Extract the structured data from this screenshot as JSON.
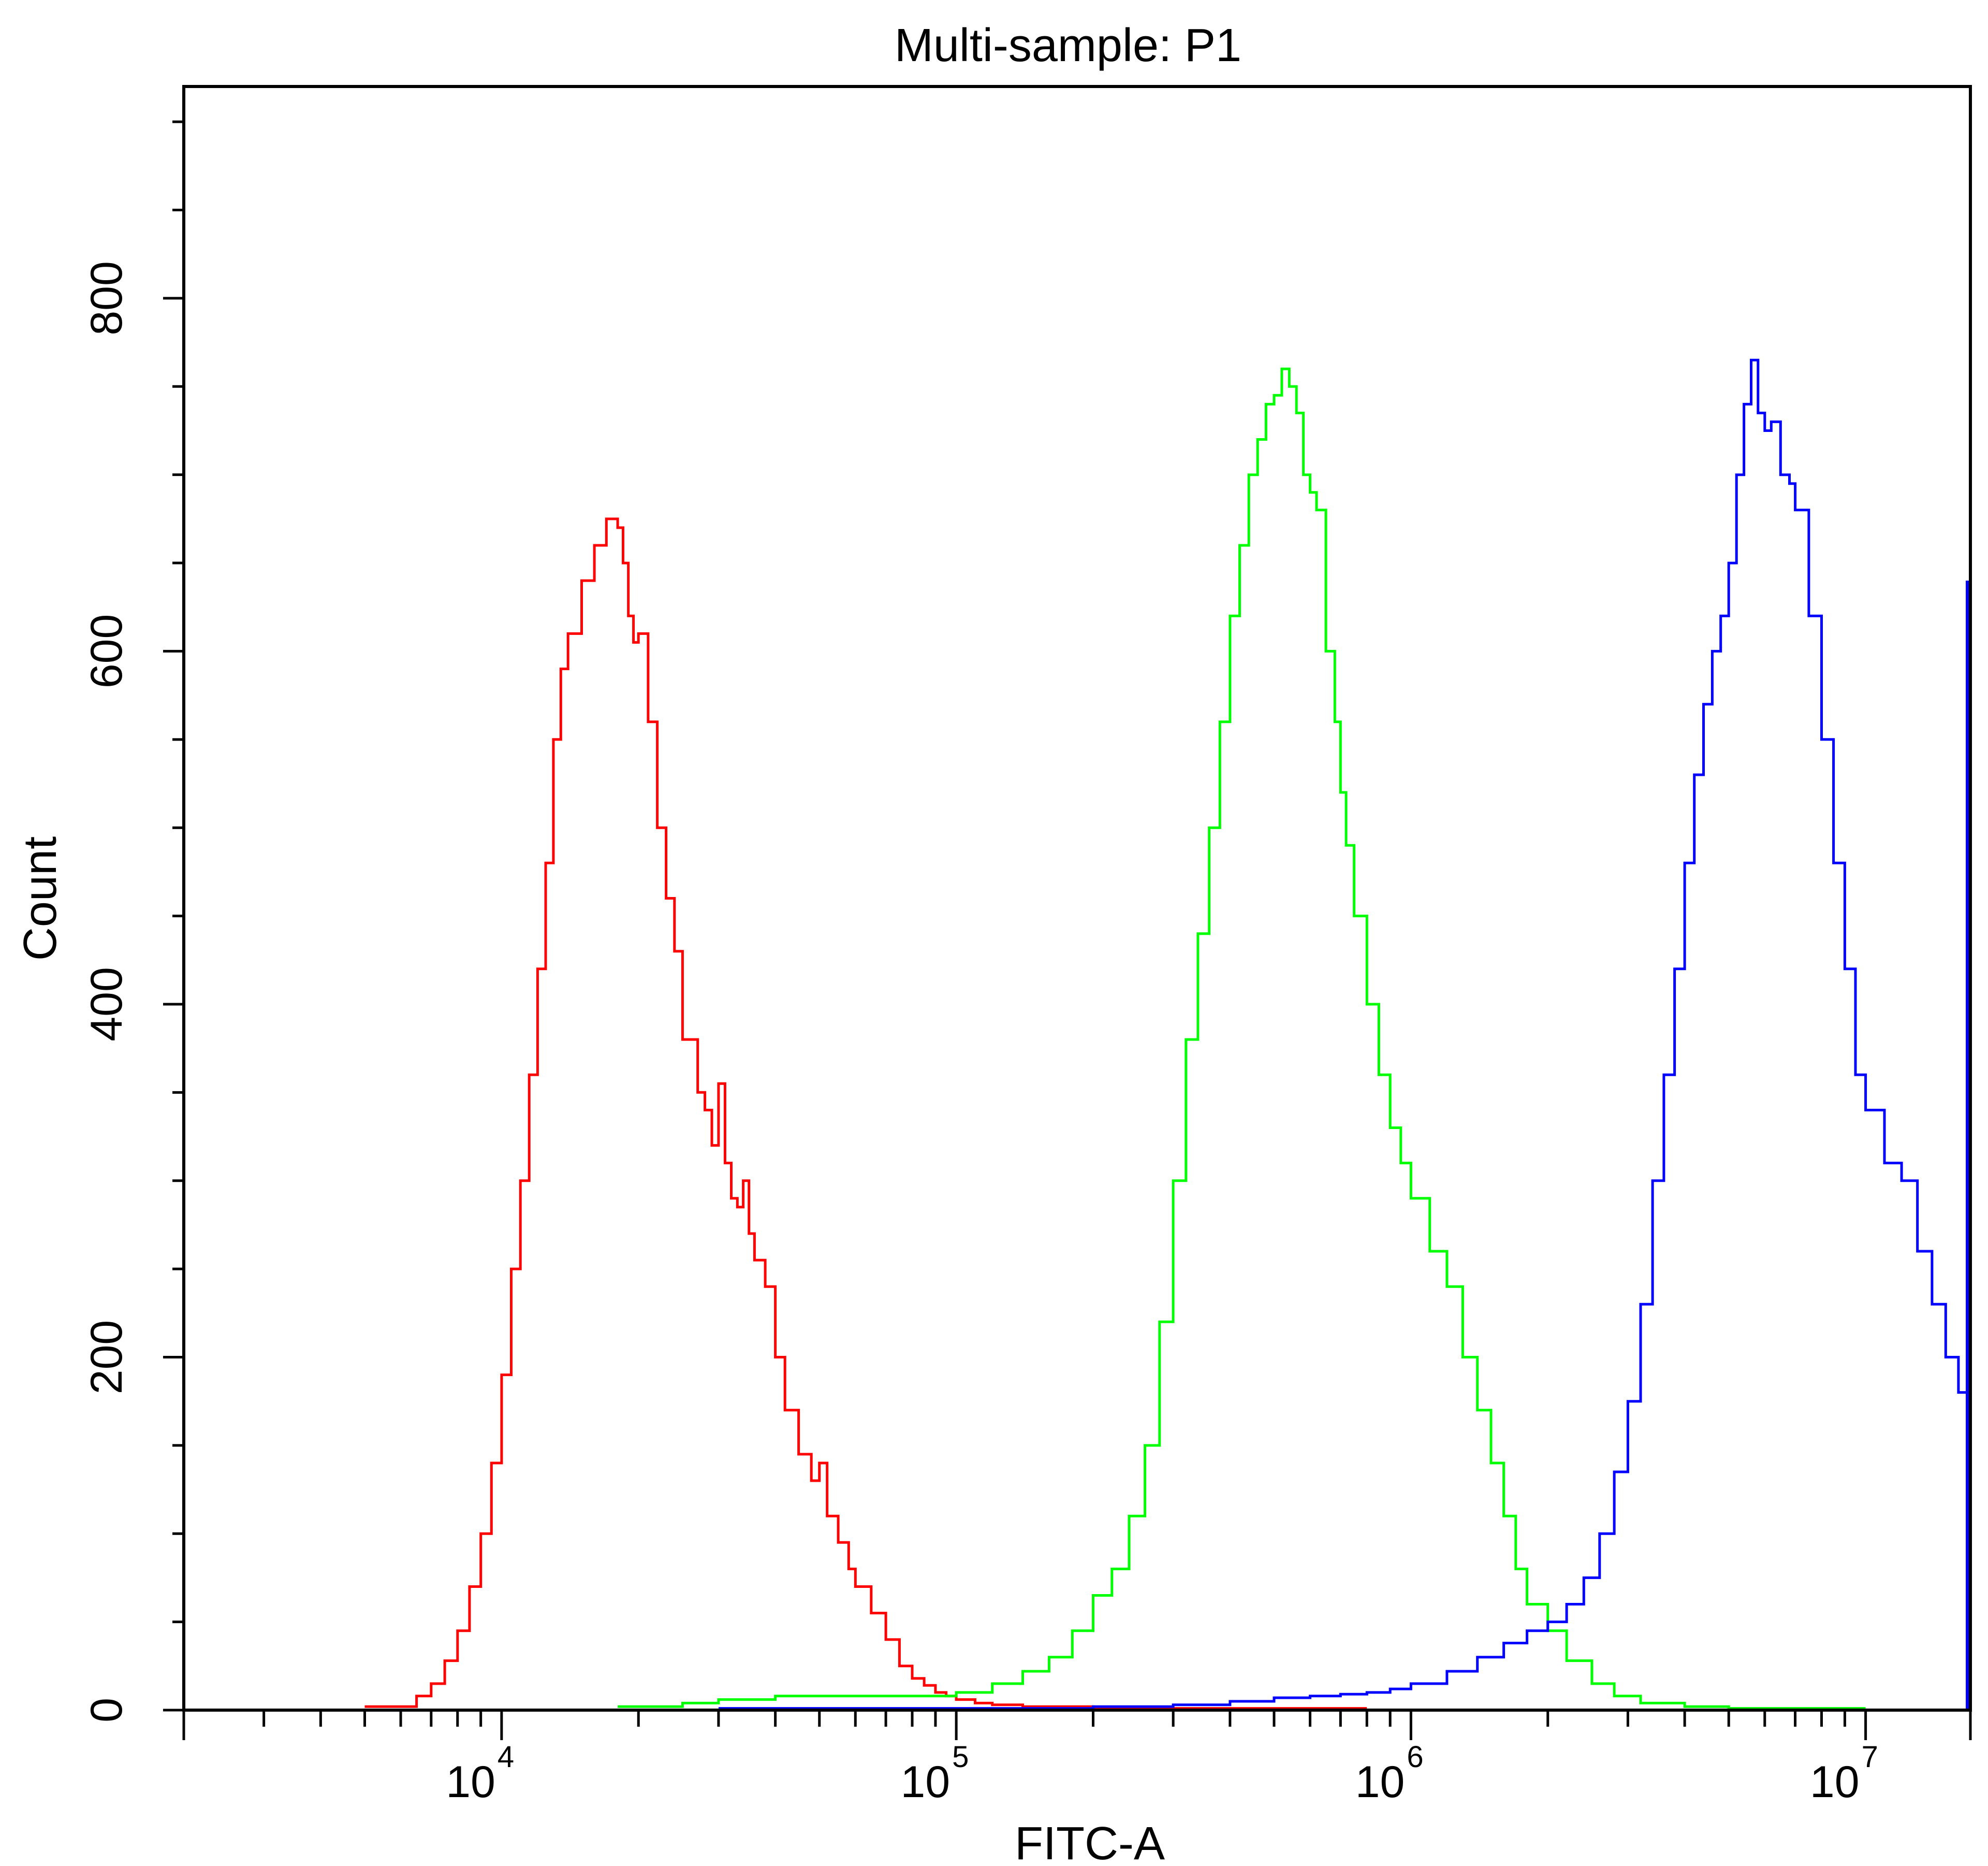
{
  "chart_data": {
    "type": "line",
    "title": "Multi-sample: P1",
    "xlabel": "FITC-A",
    "ylabel": "Count",
    "xscale": "log",
    "xlim": [
      2000,
      17000000
    ],
    "ylim": [
      0,
      920
    ],
    "grid": false,
    "legend": "none",
    "y_ticks": [
      0,
      200,
      400,
      600,
      800
    ],
    "y_tick_labels": [
      "0",
      "200",
      "400",
      "600",
      "800"
    ],
    "x_ticks": [
      {
        "value": 10000,
        "base": "10",
        "exp": "4"
      },
      {
        "value": 100000,
        "base": "10",
        "exp": "5"
      },
      {
        "value": 1000000,
        "base": "10",
        "exp": "6"
      },
      {
        "value": 10000000,
        "base": "10",
        "exp": "7"
      }
    ],
    "series": [
      {
        "color": "#ff0000",
        "x": [
          5000,
          6000,
          6500,
          7000,
          7500,
          8000,
          8500,
          9000,
          9500,
          10000,
          10500,
          11000,
          11500,
          12000,
          12500,
          13000,
          13500,
          14000,
          15000,
          16000,
          17000,
          17500,
          18000,
          18500,
          19000,
          19500,
          20000,
          21000,
          22000,
          23000,
          24000,
          25000,
          26000,
          27000,
          28000,
          29000,
          30000,
          31000,
          32000,
          33000,
          34000,
          35000,
          36000,
          38000,
          40000,
          42000,
          45000,
          48000,
          50000,
          52000,
          55000,
          58000,
          60000,
          65000,
          70000,
          75000,
          80000,
          85000,
          90000,
          95000,
          100000,
          110000,
          120000,
          140000,
          160000,
          200000,
          250000,
          300000,
          400000,
          500000,
          600000,
          800000
        ],
        "y": [
          2,
          2,
          8,
          15,
          28,
          45,
          70,
          100,
          140,
          190,
          250,
          300,
          360,
          420,
          480,
          550,
          590,
          610,
          640,
          660,
          675,
          675,
          670,
          650,
          620,
          605,
          610,
          560,
          500,
          460,
          430,
          380,
          380,
          350,
          340,
          320,
          355,
          310,
          290,
          285,
          300,
          270,
          255,
          240,
          200,
          170,
          145,
          130,
          140,
          110,
          95,
          80,
          70,
          55,
          40,
          25,
          18,
          14,
          10,
          8,
          6,
          4,
          3,
          2,
          2,
          1,
          1,
          1,
          1,
          1,
          1,
          1
        ]
      },
      {
        "color": "#00ff00",
        "x": [
          18000,
          25000,
          30000,
          40000,
          50000,
          60000,
          80000,
          100000,
          120000,
          140000,
          160000,
          180000,
          200000,
          220000,
          240000,
          260000,
          280000,
          300000,
          320000,
          340000,
          360000,
          380000,
          400000,
          420000,
          440000,
          460000,
          480000,
          500000,
          520000,
          540000,
          560000,
          580000,
          600000,
          620000,
          650000,
          680000,
          700000,
          720000,
          750000,
          800000,
          850000,
          900000,
          950000,
          1000000,
          1100000,
          1200000,
          1300000,
          1400000,
          1500000,
          1600000,
          1700000,
          1800000,
          2000000,
          2200000,
          2500000,
          2800000,
          3200000,
          4000000,
          5000000,
          6000000,
          8000000,
          10000000
        ],
        "y": [
          2,
          4,
          6,
          8,
          8,
          8,
          8,
          10,
          15,
          22,
          30,
          45,
          65,
          80,
          110,
          150,
          220,
          300,
          380,
          440,
          500,
          560,
          620,
          660,
          700,
          720,
          740,
          745,
          760,
          750,
          735,
          700,
          690,
          680,
          600,
          560,
          520,
          490,
          450,
          400,
          360,
          330,
          310,
          290,
          260,
          240,
          200,
          170,
          140,
          110,
          80,
          60,
          45,
          28,
          15,
          8,
          4,
          2,
          1,
          1,
          1,
          1
        ]
      },
      {
        "color": "#0000ff",
        "x": [
          30000,
          60000,
          100000,
          200000,
          300000,
          400000,
          500000,
          600000,
          700000,
          800000,
          900000,
          1000000,
          1200000,
          1400000,
          1600000,
          1800000,
          2000000,
          2200000,
          2400000,
          2600000,
          2800000,
          3000000,
          3200000,
          3400000,
          3600000,
          3800000,
          4000000,
          4200000,
          4400000,
          4600000,
          4800000,
          5000000,
          5200000,
          5400000,
          5600000,
          5800000,
          6000000,
          6200000,
          6500000,
          6800000,
          7000000,
          7500000,
          8000000,
          8500000,
          9000000,
          9500000,
          10000000,
          11000000,
          12000000,
          13000000,
          14000000,
          15000000,
          16000000,
          16800000
        ],
        "y": [
          1,
          1,
          1,
          2,
          3,
          5,
          7,
          8,
          9,
          10,
          12,
          15,
          22,
          30,
          38,
          45,
          50,
          60,
          75,
          100,
          135,
          175,
          230,
          300,
          360,
          420,
          480,
          530,
          570,
          600,
          620,
          650,
          700,
          740,
          765,
          735,
          725,
          730,
          700,
          695,
          680,
          620,
          550,
          480,
          420,
          360,
          340,
          310,
          300,
          260,
          230,
          200,
          180,
          130
        ]
      }
    ]
  }
}
